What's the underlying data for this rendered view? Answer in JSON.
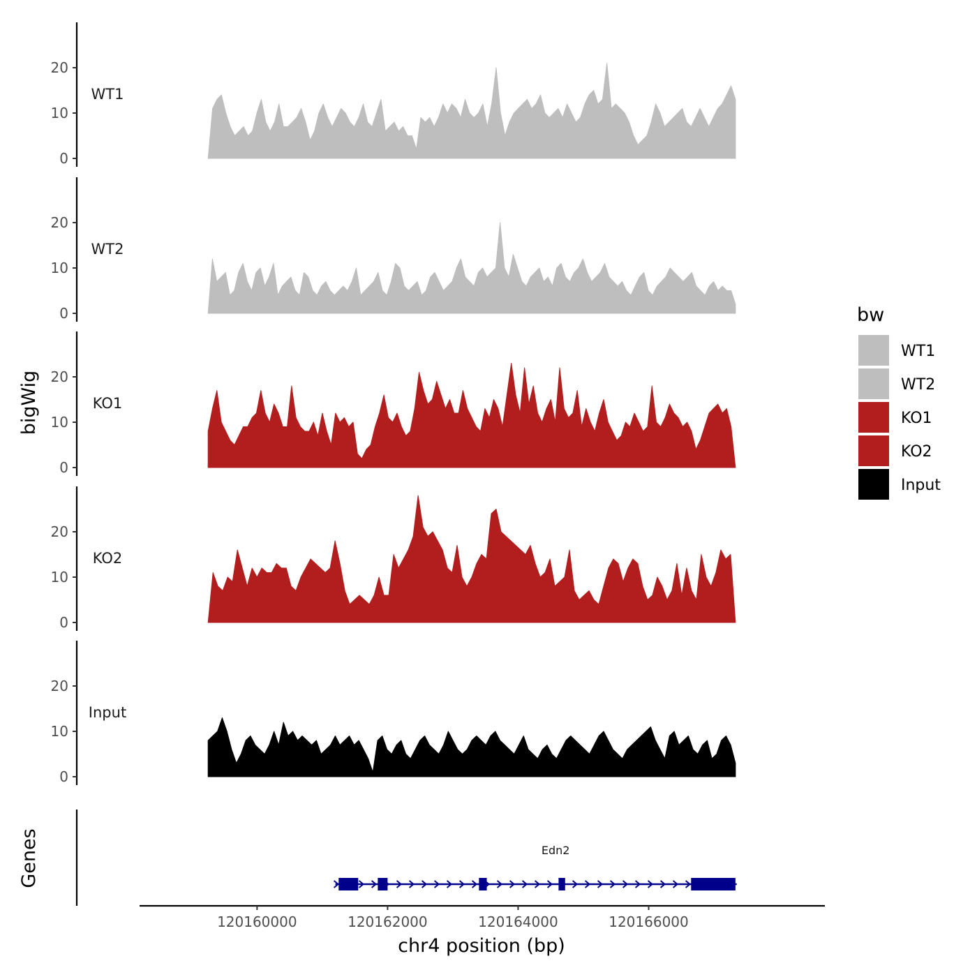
{
  "chart_data": {
    "type": "area",
    "ylabel": "bigWig",
    "genes_label": "Genes",
    "xlabel": "chr4 position (bp)",
    "x_range": [
      120158200,
      120168700
    ],
    "data_x_range": [
      120159250,
      120167330
    ],
    "ylim": [
      0,
      30
    ],
    "y_ticks": [
      0,
      10,
      20
    ],
    "x_ticks": [
      {
        "value": 120160000,
        "label": "120160000"
      },
      {
        "value": 120162000,
        "label": "120162000"
      },
      {
        "value": 120164000,
        "label": "120164000"
      },
      {
        "value": 120166000,
        "label": "120166000"
      }
    ],
    "legend": {
      "title": "bw",
      "entries": [
        {
          "label": "WT1",
          "color": "#bebebe"
        },
        {
          "label": "WT2",
          "color": "#bebebe"
        },
        {
          "label": "KO1",
          "color": "#b21e1e"
        },
        {
          "label": "KO2",
          "color": "#b21e1e"
        },
        {
          "label": "Input",
          "color": "#000000"
        }
      ]
    },
    "series": [
      {
        "name": "WT1",
        "color": "#bebebe",
        "values": [
          0,
          11,
          13,
          14,
          10,
          7,
          5,
          6,
          7,
          5,
          6,
          10,
          13,
          8,
          6,
          8,
          12,
          7,
          7,
          8,
          9,
          11,
          8,
          4,
          6,
          10,
          12,
          9,
          7,
          9,
          11,
          10,
          8,
          7,
          9,
          12,
          8,
          7,
          10,
          13,
          6,
          7,
          8,
          6,
          7,
          5,
          5,
          2,
          9,
          8,
          9,
          7,
          9,
          12,
          10,
          12,
          11,
          9,
          13,
          10,
          9,
          10,
          12,
          7,
          12,
          20,
          10,
          5,
          8,
          10,
          11,
          12,
          13,
          11,
          12,
          14,
          10,
          9,
          10,
          11,
          9,
          12,
          10,
          8,
          9,
          12,
          14,
          15,
          12,
          13,
          21,
          11,
          12,
          11,
          10,
          8,
          5,
          3,
          4,
          5,
          8,
          12,
          10,
          7,
          8,
          9,
          10,
          11,
          8,
          7,
          9,
          11,
          9,
          7,
          9,
          11,
          12,
          14,
          16,
          13
        ]
      },
      {
        "name": "WT2",
        "color": "#bebebe",
        "values": [
          0,
          12,
          7,
          8,
          9,
          4,
          5,
          9,
          11,
          7,
          5,
          9,
          10,
          6,
          8,
          11,
          4,
          6,
          7,
          8,
          5,
          4,
          9,
          8,
          5,
          4,
          6,
          7,
          5,
          4,
          5,
          6,
          5,
          7,
          10,
          4,
          5,
          6,
          7,
          9,
          5,
          4,
          7,
          11,
          10,
          6,
          5,
          6,
          7,
          4,
          5,
          8,
          9,
          7,
          5,
          6,
          7,
          10,
          12,
          8,
          7,
          6,
          9,
          10,
          8,
          9,
          10,
          20,
          10,
          8,
          13,
          10,
          7,
          6,
          8,
          9,
          10,
          7,
          8,
          6,
          10,
          11,
          8,
          7,
          9,
          10,
          12,
          9,
          7,
          8,
          9,
          11,
          8,
          7,
          6,
          7,
          5,
          4,
          6,
          8,
          9,
          5,
          4,
          6,
          7,
          8,
          10,
          9,
          8,
          7,
          8,
          9,
          6,
          5,
          4,
          6,
          7,
          5,
          6,
          5,
          5,
          2
        ]
      },
      {
        "name": "KO1",
        "color": "#b21e1e",
        "values": [
          8,
          13,
          17,
          10,
          8,
          6,
          5,
          7,
          9,
          9,
          11,
          12,
          17,
          12,
          10,
          14,
          12,
          9,
          9,
          18,
          11,
          9,
          8,
          8,
          10,
          7,
          12,
          8,
          5,
          12,
          10,
          11,
          9,
          10,
          3,
          2,
          4,
          5,
          9,
          12,
          16,
          11,
          10,
          12,
          9,
          7,
          8,
          13,
          21,
          17,
          14,
          15,
          19,
          16,
          13,
          15,
          12,
          12,
          17,
          13,
          11,
          9,
          8,
          13,
          11,
          15,
          13,
          9,
          16,
          23,
          16,
          12,
          22,
          14,
          18,
          12,
          10,
          13,
          15,
          10,
          22,
          13,
          11,
          12,
          17,
          9,
          13,
          10,
          8,
          12,
          15,
          10,
          8,
          6,
          7,
          10,
          9,
          12,
          10,
          8,
          9,
          18,
          10,
          9,
          11,
          14,
          12,
          11,
          9,
          10,
          8,
          4,
          6,
          9,
          12,
          13,
          14,
          12,
          13,
          9,
          0
        ]
      },
      {
        "name": "KO2",
        "color": "#b21e1e",
        "values": [
          0,
          11,
          8,
          7,
          10,
          9,
          16,
          12,
          8,
          12,
          10,
          12,
          11,
          11,
          13,
          12,
          12,
          8,
          7,
          10,
          12,
          14,
          13,
          12,
          11,
          12,
          18,
          13,
          7,
          4,
          5,
          6,
          5,
          4,
          6,
          10,
          6,
          6,
          15,
          12,
          14,
          16,
          19,
          28,
          21,
          19,
          20,
          18,
          16,
          12,
          11,
          17,
          10,
          8,
          10,
          13,
          15,
          14,
          24,
          25,
          20,
          19,
          18,
          17,
          16,
          15,
          17,
          13,
          10,
          11,
          14,
          8,
          9,
          10,
          16,
          7,
          5,
          6,
          7,
          5,
          4,
          8,
          12,
          14,
          13,
          9,
          12,
          14,
          13,
          8,
          5,
          6,
          10,
          8,
          5,
          7,
          13,
          6,
          12,
          7,
          5,
          15,
          10,
          8,
          11,
          16,
          14,
          15,
          0
        ]
      },
      {
        "name": "Input",
        "color": "#000000",
        "values": [
          8,
          9,
          10,
          13,
          10,
          6,
          3,
          5,
          8,
          9,
          7,
          6,
          5,
          7,
          10,
          7,
          12,
          9,
          10,
          8,
          9,
          8,
          7,
          8,
          5,
          6,
          7,
          9,
          7,
          8,
          9,
          7,
          8,
          6,
          4,
          1,
          8,
          9,
          6,
          5,
          7,
          8,
          5,
          4,
          6,
          8,
          9,
          7,
          6,
          5,
          7,
          10,
          8,
          6,
          5,
          6,
          8,
          9,
          8,
          7,
          9,
          10,
          8,
          7,
          6,
          5,
          7,
          9,
          6,
          5,
          4,
          6,
          7,
          5,
          4,
          6,
          8,
          9,
          8,
          7,
          6,
          5,
          7,
          9,
          10,
          8,
          6,
          5,
          4,
          6,
          7,
          8,
          9,
          10,
          11,
          8,
          6,
          4,
          9,
          10,
          7,
          8,
          9,
          6,
          5,
          7,
          8,
          4,
          5,
          8,
          9,
          7,
          3
        ]
      }
    ],
    "genes": [
      {
        "name": "Edn2",
        "start": 120161200,
        "end": 120167350,
        "strand": "+",
        "exons": [
          [
            120161250,
            120161550
          ],
          [
            120161850,
            120162000
          ],
          [
            120163400,
            120163520
          ],
          [
            120164620,
            120164720
          ],
          [
            120166650,
            120167330
          ]
        ]
      }
    ]
  }
}
